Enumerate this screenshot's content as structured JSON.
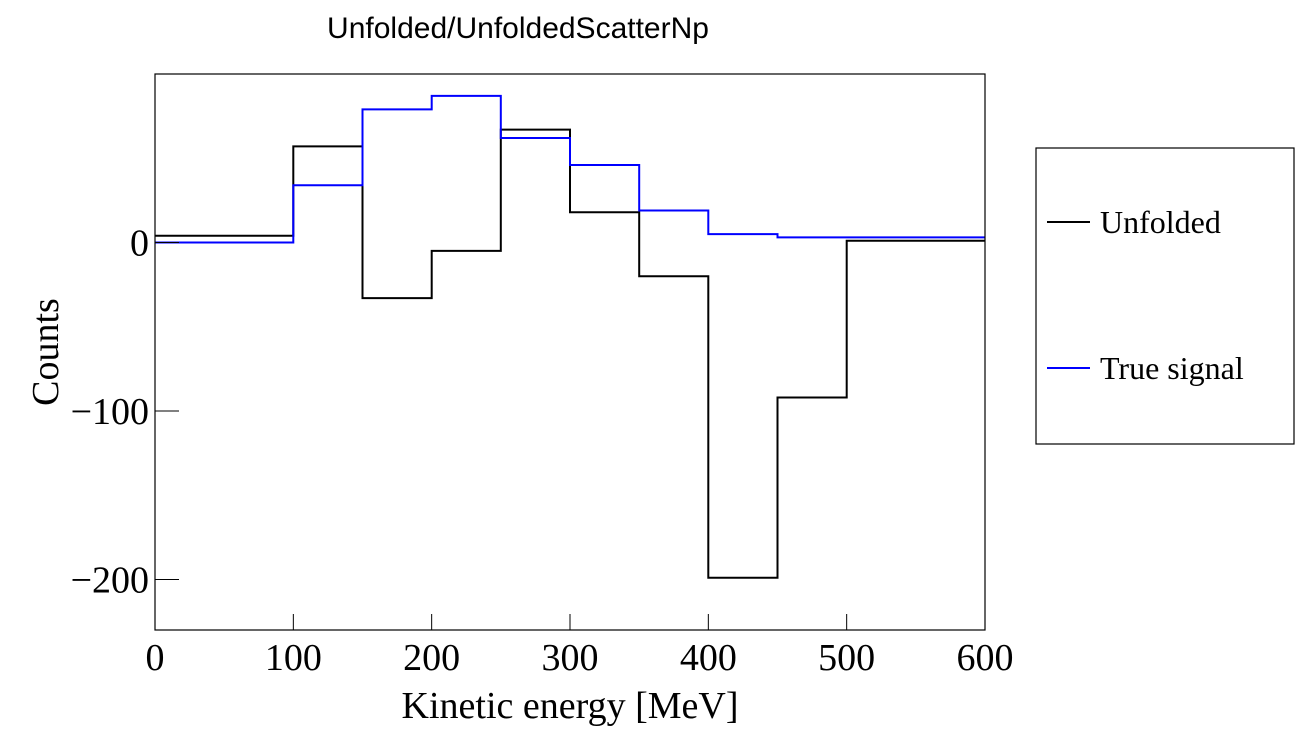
{
  "chart_data": {
    "type": "line",
    "step": "histogram",
    "title": "Unfolded/UnfoldedScatterNp",
    "xlabel": "Kinetic energy [MeV]",
    "ylabel": "Counts",
    "xlim": [
      0,
      600
    ],
    "ylim": [
      -230,
      100
    ],
    "x_ticks": [
      0,
      100,
      200,
      300,
      400,
      500,
      600
    ],
    "x_tick_labels": [
      "0",
      "100",
      "200",
      "300",
      "400",
      "500",
      "600"
    ],
    "y_ticks": [
      0,
      -100,
      -200
    ],
    "y_tick_labels": [
      "0",
      "−100",
      "−200"
    ],
    "bin_edges": [
      0,
      100,
      150,
      200,
      250,
      300,
      350,
      400,
      450,
      500,
      600
    ],
    "grid": false,
    "legend_position": "right",
    "series": [
      {
        "name": "Unfolded",
        "color": "#000000",
        "values": [
          4,
          57,
          -33,
          -5,
          67,
          18,
          -20,
          -199,
          -92,
          1
        ]
      },
      {
        "name": "True signal",
        "color": "#0000ff",
        "values": [
          0,
          34,
          79,
          87,
          62,
          46,
          19,
          5,
          3,
          3
        ]
      }
    ]
  }
}
